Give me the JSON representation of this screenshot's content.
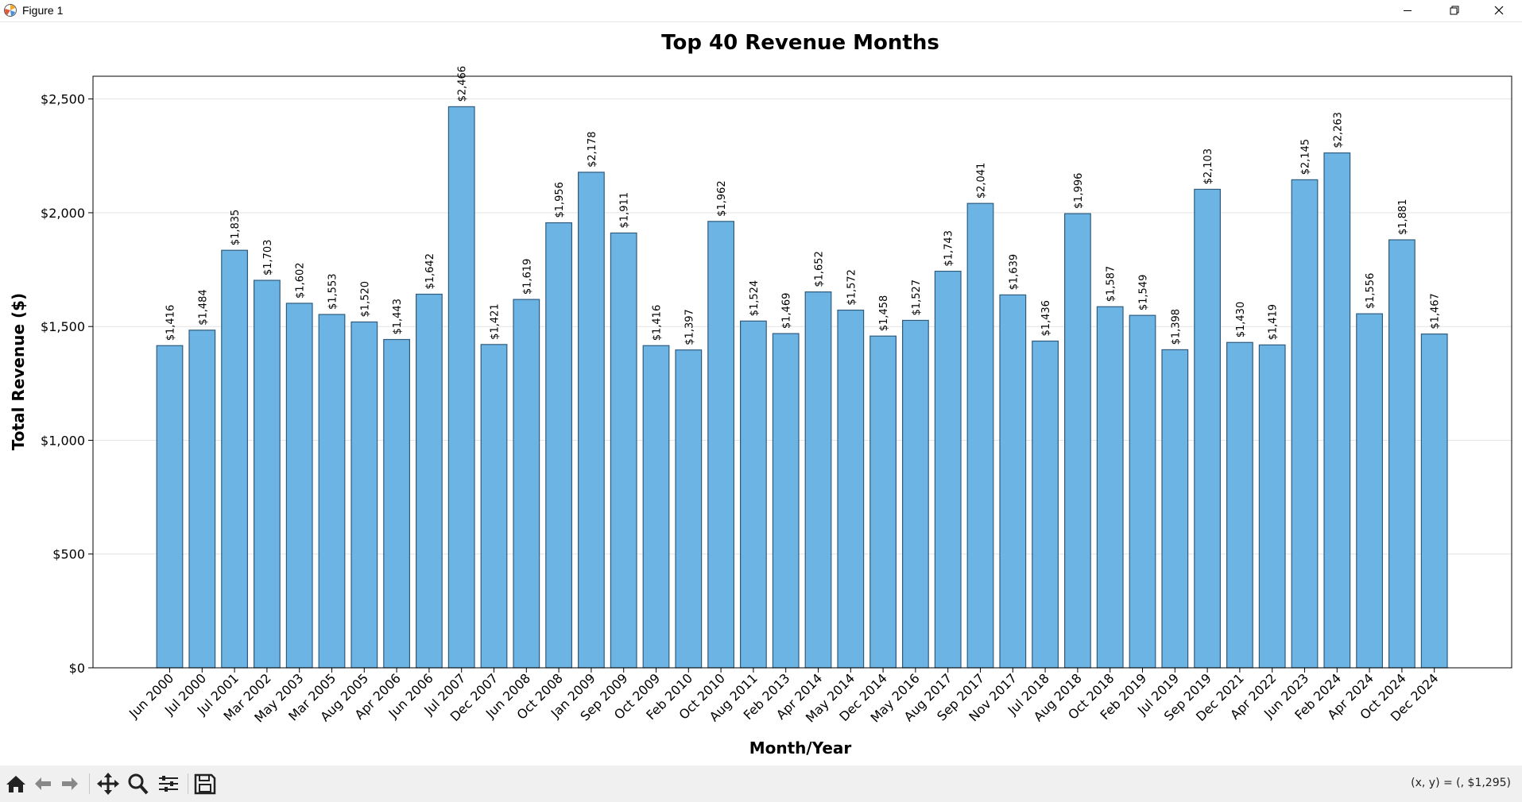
{
  "window": {
    "title": "Figure 1"
  },
  "colors": {
    "bar_fill": "#6cb4e4",
    "bar_edge": "#2f5c7e",
    "grid": "#e4e4e4",
    "toolbar_bg": "#f0f0f0"
  },
  "toolbar": {
    "icons": [
      "home-icon",
      "back-arrow-icon",
      "forward-arrow-icon",
      "pan-icon",
      "zoom-icon",
      "configure-subplots-icon",
      "save-icon"
    ],
    "coord_readout": "(x, y) = (, $1,295)"
  },
  "chart_data": {
    "type": "bar",
    "title": "Top 40 Revenue Months",
    "xlabel": "Month/Year",
    "ylabel": "Total Revenue ($)",
    "ylim": [
      0,
      2600
    ],
    "yticks": [
      0,
      500,
      1000,
      1500,
      2000,
      2500
    ],
    "ytick_labels": [
      "$0",
      "$500",
      "$1,000",
      "$1,500",
      "$2,000",
      "$2,500"
    ],
    "grid": "y-axis only",
    "categories": [
      "Jun 2000",
      "Jul 2000",
      "Jul 2001",
      "Mar 2002",
      "May 2003",
      "Mar 2005",
      "Aug 2005",
      "Apr 2006",
      "Jun 2006",
      "Jul 2007",
      "Dec 2007",
      "Jun 2008",
      "Oct 2008",
      "Jan 2009",
      "Sep 2009",
      "Oct 2009",
      "Feb 2010",
      "Oct 2010",
      "Aug 2011",
      "Feb 2013",
      "Apr 2014",
      "May 2014",
      "Dec 2014",
      "May 2016",
      "Aug 2017",
      "Sep 2017",
      "Nov 2017",
      "Jul 2018",
      "Aug 2018",
      "Oct 2018",
      "Feb 2019",
      "Jul 2019",
      "Sep 2019",
      "Dec 2021",
      "Apr 2022",
      "Jun 2023",
      "Feb 2024",
      "Apr 2024",
      "Oct 2024",
      "Dec 2024"
    ],
    "values": [
      1416,
      1484,
      1835,
      1703,
      1602,
      1553,
      1520,
      1443,
      1642,
      2466,
      1421,
      1619,
      1956,
      2178,
      1911,
      1416,
      1397,
      1962,
      1524,
      1469,
      1652,
      1572,
      1458,
      1527,
      1743,
      2041,
      1639,
      1436,
      1996,
      1587,
      1549,
      1398,
      2103,
      1430,
      1419,
      2145,
      2263,
      1556,
      1881,
      1467
    ],
    "data_labels": [
      "$1,416",
      "$1,484",
      "$1,835",
      "$1,703",
      "$1,602",
      "$1,553",
      "$1,520",
      "$1,443",
      "$1,642",
      "$2,466",
      "$1,421",
      "$1,619",
      "$1,956",
      "$2,178",
      "$1,911",
      "$1,416",
      "$1,397",
      "$1,962",
      "$1,524",
      "$1,469",
      "$1,652",
      "$1,572",
      "$1,458",
      "$1,527",
      "$1,743",
      "$2,041",
      "$1,639",
      "$1,436",
      "$1,996",
      "$1,587",
      "$1,549",
      "$1,398",
      "$2,103",
      "$1,430",
      "$1,419",
      "$2,145",
      "$2,263",
      "$1,556",
      "$1,881",
      "$1,467"
    ]
  }
}
